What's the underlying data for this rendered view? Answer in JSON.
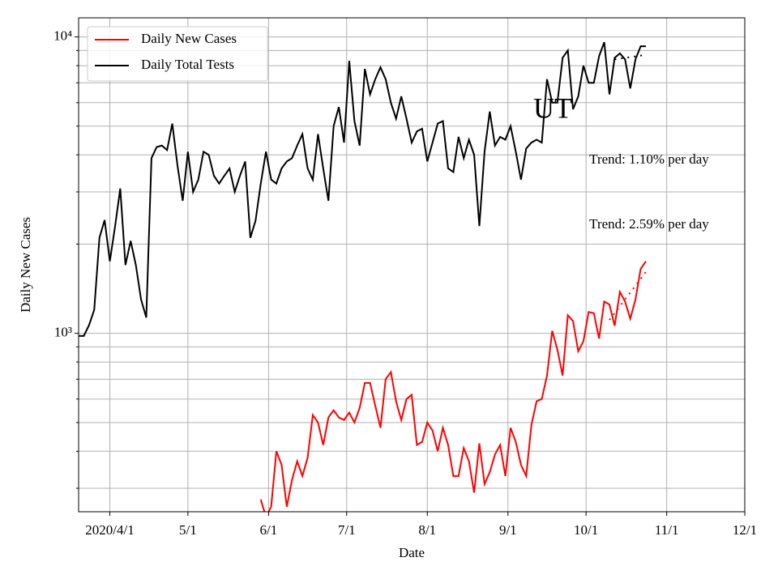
{
  "chart_data": {
    "type": "line",
    "title": "UT",
    "xlabel": "Date",
    "ylabel": "Daily New Cases",
    "log_y": true,
    "grid": true,
    "legend": "upper left",
    "xlim": [
      "2020-03-20",
      "2020-12-01"
    ],
    "xticks": [
      {
        "value": "2020-04-01",
        "label": "2020/4/1"
      },
      {
        "value": "2020-05-01",
        "label": "5/1"
      },
      {
        "value": "2020-06-01",
        "label": "6/1"
      },
      {
        "value": "2020-07-01",
        "label": "7/1"
      },
      {
        "value": "2020-08-01",
        "label": "8/1"
      },
      {
        "value": "2020-09-01",
        "label": "9/1"
      },
      {
        "value": "2020-10-01",
        "label": "10/1"
      },
      {
        "value": "2020-11-01",
        "label": "11/1"
      },
      {
        "value": "2020-12-01",
        "label": "12/1"
      }
    ],
    "ylim": [
      250,
      11600
    ],
    "yticks": [
      {
        "value": 1000,
        "label": "10³"
      },
      {
        "value": 10000,
        "label": "10⁴"
      }
    ],
    "yminorticks": [
      300,
      400,
      500,
      600,
      700,
      800,
      900,
      2000,
      3000,
      4000,
      5000,
      6000,
      7000,
      8000,
      9000
    ],
    "x": [
      "2020-03-20",
      "2020-03-22",
      "2020-03-24",
      "2020-03-26",
      "2020-03-28",
      "2020-03-30",
      "2020-04-01",
      "2020-04-03",
      "2020-04-05",
      "2020-04-07",
      "2020-04-09",
      "2020-04-11",
      "2020-04-13",
      "2020-04-15",
      "2020-04-17",
      "2020-04-19",
      "2020-04-21",
      "2020-04-23",
      "2020-04-25",
      "2020-04-27",
      "2020-04-29",
      "2020-05-01",
      "2020-05-03",
      "2020-05-05",
      "2020-05-07",
      "2020-05-09",
      "2020-05-11",
      "2020-05-13",
      "2020-05-15",
      "2020-05-17",
      "2020-05-19",
      "2020-05-21",
      "2020-05-23",
      "2020-05-25",
      "2020-05-27",
      "2020-05-29",
      "2020-05-31",
      "2020-06-02",
      "2020-06-04",
      "2020-06-06",
      "2020-06-08",
      "2020-06-10",
      "2020-06-12",
      "2020-06-14",
      "2020-06-16",
      "2020-06-18",
      "2020-06-20",
      "2020-06-22",
      "2020-06-24",
      "2020-06-26",
      "2020-06-28",
      "2020-06-30",
      "2020-07-02",
      "2020-07-04",
      "2020-07-06",
      "2020-07-08",
      "2020-07-10",
      "2020-07-12",
      "2020-07-14",
      "2020-07-16",
      "2020-07-18",
      "2020-07-20",
      "2020-07-22",
      "2020-07-24",
      "2020-07-26",
      "2020-07-28",
      "2020-07-30",
      "2020-08-01",
      "2020-08-03",
      "2020-08-05",
      "2020-08-07",
      "2020-08-09",
      "2020-08-11",
      "2020-08-13",
      "2020-08-15",
      "2020-08-17",
      "2020-08-19",
      "2020-08-21",
      "2020-08-23",
      "2020-08-25",
      "2020-08-27",
      "2020-08-29",
      "2020-08-31",
      "2020-09-02",
      "2020-09-04",
      "2020-09-06",
      "2020-09-08",
      "2020-09-10",
      "2020-09-12",
      "2020-09-14",
      "2020-09-16",
      "2020-09-18",
      "2020-09-20",
      "2020-09-22",
      "2020-09-24",
      "2020-09-26",
      "2020-09-28",
      "2020-09-30",
      "2020-10-02",
      "2020-10-04",
      "2020-10-06",
      "2020-10-08",
      "2020-10-10",
      "2020-10-12",
      "2020-10-14",
      "2020-10-16",
      "2020-10-18",
      "2020-10-20",
      "2020-10-22",
      "2020-10-24"
    ],
    "series": [
      {
        "name": "Daily New Cases",
        "color": "#ff0000",
        "values": [
          null,
          null,
          null,
          null,
          null,
          null,
          null,
          null,
          null,
          null,
          null,
          null,
          null,
          null,
          null,
          null,
          null,
          null,
          null,
          null,
          null,
          null,
          null,
          null,
          null,
          null,
          null,
          null,
          null,
          null,
          null,
          null,
          null,
          null,
          null,
          275,
          240,
          260,
          400,
          360,
          260,
          320,
          370,
          330,
          380,
          530,
          500,
          420,
          520,
          550,
          520,
          510,
          540,
          500,
          560,
          680,
          680,
          570,
          480,
          700,
          740,
          590,
          510,
          600,
          620,
          420,
          430,
          500,
          470,
          400,
          480,
          420,
          330,
          330,
          410,
          370,
          290,
          425,
          310,
          340,
          390,
          420,
          330,
          480,
          430,
          360,
          330,
          490,
          590,
          600,
          720,
          1020,
          880,
          720,
          1150,
          1100,
          870,
          940,
          1180,
          1170,
          960,
          1280,
          1250,
          1060,
          1380,
          1280,
          1120,
          1300,
          1650,
          1750
        ]
      },
      {
        "name": "Daily Total Tests",
        "color": "#000000",
        "values": [
          980,
          980,
          1065,
          1200,
          2100,
          2410,
          1750,
          2290,
          3080,
          1700,
          2050,
          1700,
          1300,
          1130,
          3900,
          4250,
          4300,
          4150,
          5100,
          3680,
          2800,
          4100,
          3000,
          3300,
          4100,
          4000,
          3400,
          3200,
          3400,
          3600,
          3000,
          3400,
          3800,
          2100,
          2400,
          3200,
          4100,
          3300,
          3200,
          3600,
          3800,
          3900,
          4300,
          4700,
          3600,
          3300,
          4700,
          3600,
          2800,
          5000,
          5800,
          4400,
          8300,
          5200,
          4300,
          7800,
          6400,
          7200,
          7900,
          7200,
          6000,
          5300,
          6300,
          5300,
          4400,
          4800,
          4900,
          3800,
          4400,
          5100,
          5200,
          3600,
          3500,
          4600,
          3900,
          4500,
          4000,
          2300,
          4100,
          5600,
          4300,
          4600,
          4500,
          5000,
          4100,
          3300,
          4200,
          4400,
          4500,
          4400,
          7200,
          6000,
          6000,
          8500,
          9000,
          5700,
          6300,
          8000,
          7000,
          7000,
          8600,
          9600,
          6400,
          8500,
          8800,
          8400,
          6700,
          8400,
          9300,
          9300
        ]
      }
    ],
    "trend_lines": [
      {
        "x": [
          "2020-10-12",
          "2020-10-24"
        ],
        "values": [
          8400,
          8700
        ],
        "color": "#000000"
      },
      {
        "x": [
          "2020-10-10",
          "2020-10-24"
        ],
        "values": [
          1110,
          1610
        ],
        "color": "#ff0000"
      }
    ],
    "annotations": [
      "Trend: 1.10% per day",
      "Trend: 2.59% per day"
    ]
  }
}
